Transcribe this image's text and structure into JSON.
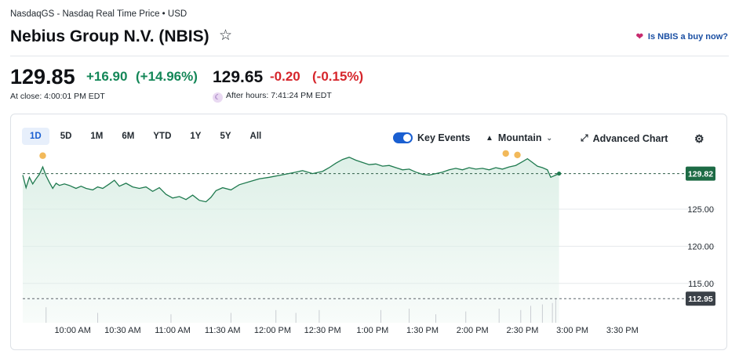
{
  "header": {
    "source": "NasdaqGS - Nasdaq Real Time Price • USD",
    "title": "Nebius Group N.V. (NBIS)",
    "buy_link": "Is NBIS a buy now?"
  },
  "quote": {
    "price": "129.85",
    "change": "+16.90",
    "change_pct": "(+14.96%)",
    "close_time": "At close: 4:00:01 PM EDT",
    "ah_price": "129.65",
    "ah_change": "-0.20",
    "ah_change_pct": "(-0.15%)",
    "ah_time": "After hours: 7:41:24 PM EDT"
  },
  "controls": {
    "ranges": [
      "1D",
      "5D",
      "1M",
      "6M",
      "YTD",
      "1Y",
      "5Y",
      "All"
    ],
    "active_range": "1D",
    "key_events": "Key Events",
    "key_events_on": true,
    "chart_style": "Mountain",
    "advanced": "Advanced Chart"
  },
  "colors": {
    "up": "#148758",
    "down": "#d6262c",
    "line": "#1f7a4f",
    "area": "#dcefe6",
    "accent": "#1a5fd1",
    "event": "#f2b95a"
  },
  "chart_data": {
    "type": "area",
    "x_labels": [
      "10:00 AM",
      "10:30 AM",
      "11:00 AM",
      "11:30 AM",
      "12:00 PM",
      "12:30 PM",
      "1:00 PM",
      "1:30 PM",
      "2:00 PM",
      "2:30 PM",
      "3:00 PM",
      "3:30 PM"
    ],
    "y_ticks": [
      125.0,
      120.0,
      115.0
    ],
    "y_range": [
      109.7,
      132.5
    ],
    "current_label": "129.82",
    "previous_close_label": "112.95",
    "previous_close": 112.95,
    "series": [
      {
        "values": [
          [
            0,
            129.6
          ],
          [
            2,
            127.9
          ],
          [
            4,
            129.3
          ],
          [
            6,
            128.4
          ],
          [
            8,
            129.1
          ],
          [
            10,
            129.7
          ],
          [
            12,
            130.7
          ],
          [
            14,
            129.5
          ],
          [
            16,
            128.6
          ],
          [
            18,
            127.8
          ],
          [
            20,
            128.5
          ],
          [
            22,
            128.2
          ],
          [
            25,
            128.4
          ],
          [
            28,
            128.2
          ],
          [
            32,
            127.8
          ],
          [
            35,
            128.1
          ],
          [
            38,
            127.8
          ],
          [
            42,
            127.6
          ],
          [
            45,
            128.0
          ],
          [
            48,
            127.8
          ],
          [
            52,
            128.4
          ],
          [
            55,
            128.9
          ],
          [
            58,
            128.1
          ],
          [
            62,
            128.5
          ],
          [
            66,
            128.0
          ],
          [
            70,
            127.8
          ],
          [
            74,
            128.0
          ],
          [
            78,
            127.4
          ],
          [
            82,
            127.9
          ],
          [
            86,
            127.0
          ],
          [
            90,
            126.5
          ],
          [
            94,
            126.7
          ],
          [
            98,
            126.3
          ],
          [
            102,
            126.9
          ],
          [
            106,
            126.2
          ],
          [
            110,
            126.0
          ],
          [
            113,
            126.6
          ],
          [
            116,
            127.5
          ],
          [
            120,
            127.9
          ],
          [
            125,
            127.6
          ],
          [
            130,
            128.3
          ],
          [
            136,
            128.7
          ],
          [
            142,
            129.1
          ],
          [
            148,
            129.3
          ],
          [
            155,
            129.6
          ],
          [
            162,
            129.9
          ],
          [
            168,
            130.2
          ],
          [
            174,
            129.8
          ],
          [
            180,
            130.1
          ],
          [
            184,
            130.6
          ],
          [
            188,
            131.2
          ],
          [
            192,
            131.7
          ],
          [
            196,
            132.0
          ],
          [
            200,
            131.6
          ],
          [
            204,
            131.3
          ],
          [
            208,
            131.0
          ],
          [
            212,
            131.1
          ],
          [
            216,
            130.8
          ],
          [
            220,
            130.9
          ],
          [
            224,
            130.6
          ],
          [
            228,
            130.3
          ],
          [
            232,
            130.4
          ],
          [
            236,
            130.0
          ],
          [
            240,
            129.7
          ],
          [
            244,
            129.6
          ],
          [
            248,
            129.8
          ],
          [
            252,
            130.0
          ],
          [
            256,
            130.3
          ],
          [
            260,
            130.5
          ],
          [
            264,
            130.3
          ],
          [
            268,
            130.6
          ],
          [
            272,
            130.4
          ],
          [
            276,
            130.5
          ],
          [
            280,
            130.3
          ],
          [
            284,
            130.6
          ],
          [
            288,
            130.4
          ],
          [
            292,
            130.7
          ],
          [
            296,
            130.9
          ],
          [
            300,
            131.4
          ],
          [
            303,
            131.8
          ],
          [
            306,
            131.3
          ],
          [
            309,
            130.8
          ],
          [
            312,
            130.6
          ],
          [
            315,
            130.3
          ],
          [
            317,
            129.3
          ],
          [
            320,
            129.6
          ],
          [
            322,
            129.8
          ]
        ]
      }
    ],
    "events": [
      [
        12,
        132.0
      ],
      [
        290,
        132.3
      ],
      [
        297,
        132.1
      ]
    ],
    "volume_spikes": [
      [
        14,
        2.2
      ],
      [
        45,
        1.4
      ],
      [
        89,
        1.2
      ],
      [
        125,
        1.4
      ],
      [
        152,
        1.8
      ],
      [
        164,
        1.4
      ],
      [
        178,
        1.8
      ],
      [
        215,
        1.8
      ],
      [
        232,
        2.0
      ],
      [
        248,
        1.2
      ],
      [
        266,
        1.6
      ],
      [
        286,
        2.0
      ],
      [
        299,
        1.8
      ],
      [
        305,
        2.4
      ],
      [
        312,
        2.6
      ],
      [
        318,
        2.8
      ],
      [
        320,
        3.4
      ]
    ]
  }
}
